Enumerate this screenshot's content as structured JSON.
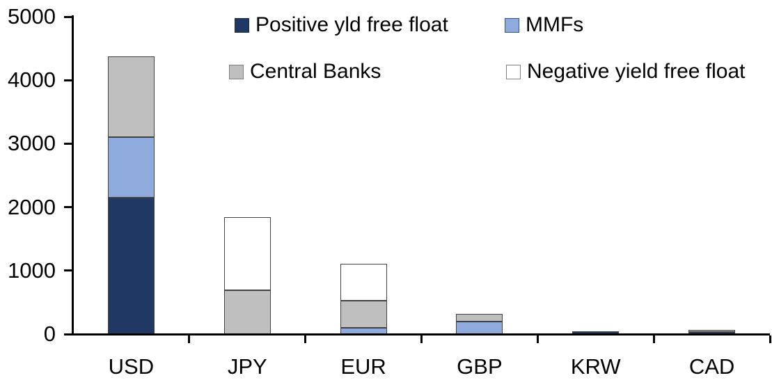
{
  "chart_data": {
    "type": "bar",
    "stacked": true,
    "title": "",
    "xlabel": "",
    "ylabel": "",
    "categories": [
      "USD",
      "JPY",
      "EUR",
      "GBP",
      "KRW",
      "CAD"
    ],
    "series": [
      {
        "name": "Positive yld free float",
        "color": "#1f3864",
        "swatch_border": "#17294a",
        "values": [
          2150,
          0,
          0,
          0,
          40,
          30
        ]
      },
      {
        "name": "MMFs",
        "color": "#8faadc",
        "swatch_border": "#2f5597",
        "values": [
          950,
          0,
          100,
          200,
          0,
          0
        ]
      },
      {
        "name": "Central Banks",
        "color": "#bfbfbf",
        "swatch_border": "#7f7f7f",
        "values": [
          1280,
          690,
          430,
          120,
          0,
          35
        ]
      },
      {
        "name": "Negative yield free float",
        "color": "#ffffff",
        "swatch_border": "#7f7f7f",
        "values": [
          0,
          1150,
          580,
          0,
          0,
          0
        ]
      }
    ],
    "ylim": [
      0,
      5000
    ],
    "yticks": [
      0,
      1000,
      2000,
      3000,
      4000,
      5000
    ],
    "ytick_labels": [
      "0",
      "1000",
      "2000",
      "3000",
      "4000",
      "5000"
    ],
    "grid": false,
    "legend_position": "top-two-rows",
    "bar_border_color": "#404040",
    "axis_color": "#000000",
    "totals": {
      "USD": 4380,
      "JPY": 1840,
      "EUR": 1110,
      "GBP": 320,
      "KRW": 40,
      "CAD": 65
    }
  }
}
